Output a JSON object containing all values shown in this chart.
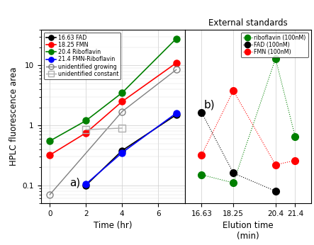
{
  "panel_a": {
    "title": "a)",
    "xlabel": "Time (hr)",
    "ylabel": "HPLC fluorescence area",
    "xlim": [
      -0.5,
      7.5
    ],
    "ylim": [
      0.05,
      40
    ],
    "xticks": [
      0,
      2,
      4,
      6
    ],
    "series": [
      {
        "label": "16.63 FAD",
        "color": "black",
        "marker": "o",
        "filled": true,
        "x": [
          2,
          4,
          7
        ],
        "y": [
          0.1,
          0.38,
          1.5
        ]
      },
      {
        "label": "18.25 FMN",
        "color": "red",
        "marker": "o",
        "filled": true,
        "x": [
          0,
          2,
          4,
          7
        ],
        "y": [
          0.32,
          0.75,
          2.5,
          11
        ]
      },
      {
        "label": "20.4 Riboflavin",
        "color": "green",
        "marker": "o",
        "filled": true,
        "x": [
          0,
          2,
          4,
          7
        ],
        "y": [
          0.55,
          1.2,
          3.5,
          28
        ]
      },
      {
        "label": "21.4 FMN-Riboflavin",
        "color": "blue",
        "marker": "o",
        "filled": true,
        "x": [
          2,
          4,
          7
        ],
        "y": [
          0.105,
          0.35,
          1.6
        ]
      },
      {
        "label": "unidentified growing",
        "color": "gray",
        "marker": "o",
        "filled": false,
        "x": [
          0,
          4,
          7
        ],
        "y": [
          0.07,
          1.7,
          8.5
        ]
      },
      {
        "label": "unidentified constant",
        "color": "#b0b0b0",
        "marker": "s",
        "filled": false,
        "x": [
          2,
          4
        ],
        "y": [
          0.85,
          0.9
        ]
      }
    ]
  },
  "panel_b": {
    "title": "b)",
    "super_title": "External standards",
    "xlabel": "Elution time",
    "xlabel2": "(min)",
    "xlim": [
      15.8,
      22.2
    ],
    "ylim": [
      0.05,
      40
    ],
    "xticks": [
      16.63,
      18.25,
      20.4,
      21.4
    ],
    "xticklabels": [
      "16.63",
      "18.25",
      "20.4",
      "21.4"
    ],
    "series": [
      {
        "label": "riboflavin (100nM)",
        "color": "green",
        "x": [
          16.63,
          18.25,
          20.4,
          21.4
        ],
        "y": [
          0.15,
          0.11,
          13.0,
          0.65
        ]
      },
      {
        "label": "FAD (100nM)",
        "color": "black",
        "x": [
          16.63,
          18.25,
          20.4
        ],
        "y": [
          1.65,
          0.16,
          0.08
        ]
      },
      {
        "label": "FMN (100nM)",
        "color": "red",
        "x": [
          16.63,
          18.25,
          20.4,
          21.4
        ],
        "y": [
          0.32,
          3.8,
          0.22,
          0.26
        ]
      }
    ]
  },
  "fig_width": 4.43,
  "fig_height": 3.46,
  "dpi": 100
}
